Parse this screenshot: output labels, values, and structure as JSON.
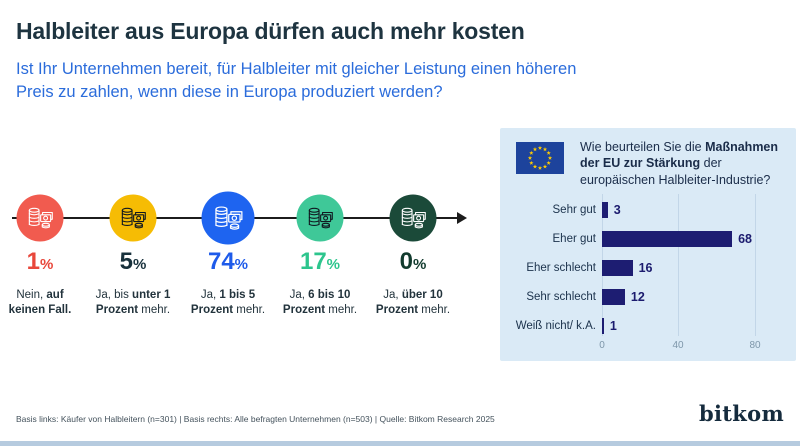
{
  "page": {
    "title": "Halbleiter aus Europa dürfen auch mehr kosten",
    "subtitle": "Ist Ihr Unternehmen bereit, für Halbleiter mit gleicher Leistung einen höheren Preis zu zahlen, wenn diese in Europa produziert werden?",
    "footer": "Basis links: Käufer von Halbleitern (n=301) | Basis rechts: Alle befragten Unternehmen (n=503) | Quelle: Bitkom Research 2025",
    "brand": "bitkom",
    "title_color": "#1E3440",
    "subtitle_color": "#2B6CDB",
    "bottom_bar_color": "#B6CBDF"
  },
  "left": {
    "unit": "%",
    "items": [
      {
        "desc_pre": "Nein,",
        "desc_bold": "auf keinen Fall.",
        "desc_post": "",
        "icon": "coins-banknote-icon",
        "circle_color": "#F15B4F",
        "value_color": "#E8473B",
        "icon_stroke": "#FFFFFF",
        "circle_size": 47
      },
      {
        "desc_pre": "Ja, bis",
        "desc_bold": "unter 1 Prozent",
        "desc_post": "mehr.",
        "icon": "coins-banknote-icon",
        "circle_color": "#F6BC04",
        "value_color": "#18313C",
        "icon_stroke": "#101820",
        "circle_size": 47
      },
      {
        "desc_pre": "Ja,",
        "desc_bold": "1 bis 5 Prozent",
        "desc_post": "mehr.",
        "icon": "coins-banknote-icon",
        "circle_color": "#1E64F0",
        "value_color": "#1E5BEA",
        "icon_stroke": "#FFFFFF",
        "circle_size": 53
      },
      {
        "desc_pre": "Ja,",
        "desc_bold": "6 bis 10 Prozent",
        "desc_post": "mehr.",
        "icon": "coins-banknote-icon",
        "circle_color": "#3FC898",
        "value_color": "#2DC58D",
        "icon_stroke": "#101820",
        "circle_size": 47
      },
      {
        "desc_pre": "Ja,",
        "desc_bold": "über 10 Prozent",
        "desc_post": "mehr.",
        "icon": "coins-banknote-icon",
        "circle_color": "#1B4A39",
        "value_color": "#123B2E",
        "icon_stroke": "#FFFFFF",
        "circle_size": 47
      }
    ]
  },
  "right_panel": {
    "flag_icon": "eu-flag-icon",
    "flag_blue": "#1D439C",
    "flag_star_color": "#FFCC00",
    "panel_bg": "#DAEAF6",
    "question_pre": "Wie beurteilen Sie die",
    "question_bold": "Maßnahmen der EU zur Stärkung",
    "question_post": "der europäischen Halbleiter-Industrie?"
  },
  "chart_data": [
    {
      "type": "bar",
      "representation": "icon-step-row",
      "question": "Ist Ihr Unternehmen bereit, für Halbleiter mit gleicher Leistung einen höheren Preis zu zahlen, wenn diese in Europa produziert werden?",
      "categories": [
        "Nein, auf keinen Fall.",
        "Ja, bis unter 1 Prozent mehr.",
        "Ja, 1 bis 5 Prozent mehr.",
        "Ja, 6 bis 10 Prozent mehr.",
        "Ja, über 10 Prozent mehr."
      ],
      "values": [
        1,
        5,
        74,
        17,
        0
      ],
      "unit": "%",
      "basis": "Käufer von Halbleitern (n=301)"
    },
    {
      "type": "bar",
      "orientation": "horizontal",
      "title": "Wie beurteilen Sie die Maßnahmen der EU zur Stärkung der europäischen Halbleiter-Industrie?",
      "categories": [
        "Sehr gut",
        "Eher gut",
        "Eher schlecht",
        "Sehr schlecht",
        "Weiß nicht/ k.A."
      ],
      "values": [
        3,
        68,
        16,
        12,
        1
      ],
      "xlim": [
        0,
        80
      ],
      "xticks": [
        0,
        40,
        80
      ],
      "bar_color": "#1D1D72",
      "grid": true,
      "legend_position": "none",
      "basis": "Alle befragten Unternehmen (n=503)"
    }
  ]
}
